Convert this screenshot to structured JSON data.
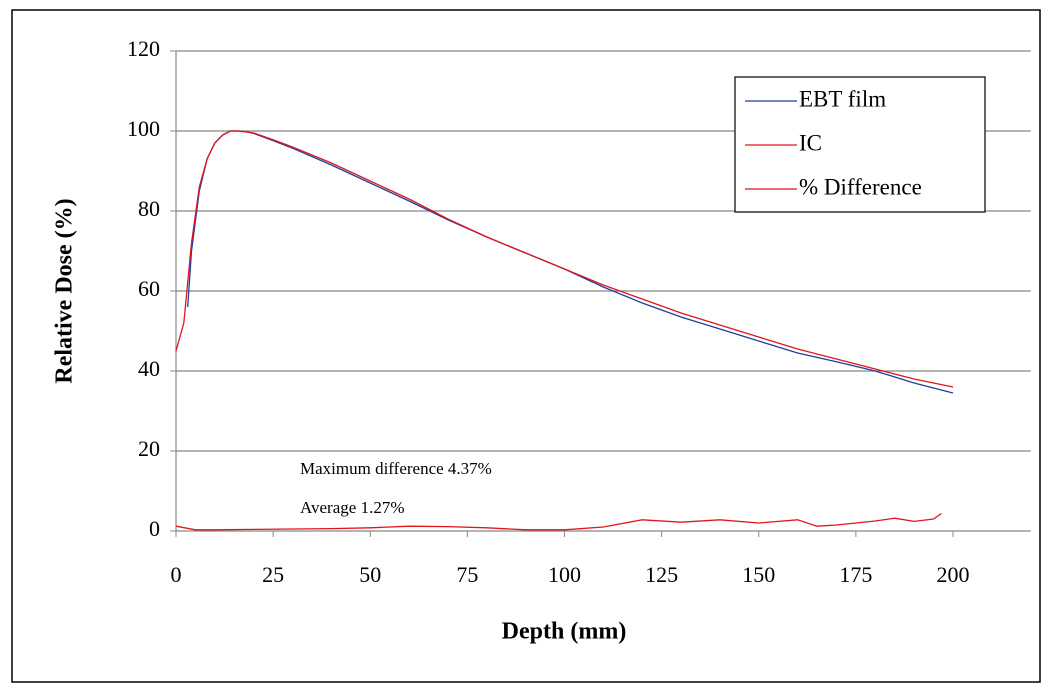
{
  "chart_data": {
    "type": "line",
    "x_label": "Depth (mm)",
    "y_label": "Relative Dose (%)",
    "xlim": [
      0,
      220
    ],
    "xticks": [
      0,
      25,
      50,
      75,
      100,
      125,
      150,
      175,
      200
    ],
    "ylim": [
      0,
      120
    ],
    "yticks": [
      0,
      20,
      40,
      60,
      80,
      100,
      120
    ],
    "grid": true,
    "legend_position": "upper right",
    "annotations": [
      "Maximum difference 4.37%",
      "Average 1.27%"
    ],
    "series": [
      {
        "name": "EBT film",
        "color": "#1f3f9f",
        "x": [
          3,
          4,
          6,
          8,
          10,
          12,
          14,
          16,
          18,
          20,
          25,
          30,
          40,
          50,
          60,
          70,
          80,
          90,
          100,
          110,
          120,
          130,
          140,
          150,
          160,
          170,
          180,
          190,
          200
        ],
        "values": [
          56,
          70,
          85,
          93,
          97,
          99,
          100,
          100,
          99.8,
          99.4,
          97.6,
          95.7,
          91.5,
          87,
          82.5,
          77.8,
          73.5,
          69.5,
          65.5,
          61,
          57,
          53.5,
          50.5,
          47.5,
          44.5,
          42.3,
          40,
          37,
          34.5
        ]
      },
      {
        "name": "IC",
        "color": "#e0161b",
        "x": [
          0,
          2,
          4,
          6,
          8,
          10,
          12,
          14,
          16,
          18,
          20,
          25,
          30,
          40,
          50,
          60,
          70,
          80,
          90,
          100,
          110,
          120,
          130,
          140,
          150,
          160,
          170,
          180,
          190,
          200
        ],
        "values": [
          45,
          52,
          72,
          86,
          93,
          97,
          99,
          100,
          100,
          99.8,
          99.5,
          97.8,
          96,
          92,
          87.5,
          83,
          78,
          73.5,
          69.5,
          65.5,
          61.5,
          58,
          54.5,
          51.5,
          48.5,
          45.5,
          43,
          40.5,
          38,
          36
        ]
      },
      {
        "name": "% Difference",
        "color": "#e0161b",
        "x": [
          0,
          5,
          10,
          20,
          30,
          40,
          50,
          60,
          70,
          80,
          90,
          100,
          110,
          120,
          130,
          140,
          150,
          160,
          165,
          170,
          180,
          185,
          190,
          195,
          197
        ],
        "values": [
          1.2,
          0.3,
          0.3,
          0.4,
          0.5,
          0.6,
          0.8,
          1.2,
          1.1,
          0.8,
          0.3,
          0.3,
          1.0,
          2.8,
          2.2,
          2.8,
          2.0,
          2.8,
          1.2,
          1.5,
          2.5,
          3.2,
          2.4,
          3.0,
          4.37
        ]
      }
    ]
  }
}
